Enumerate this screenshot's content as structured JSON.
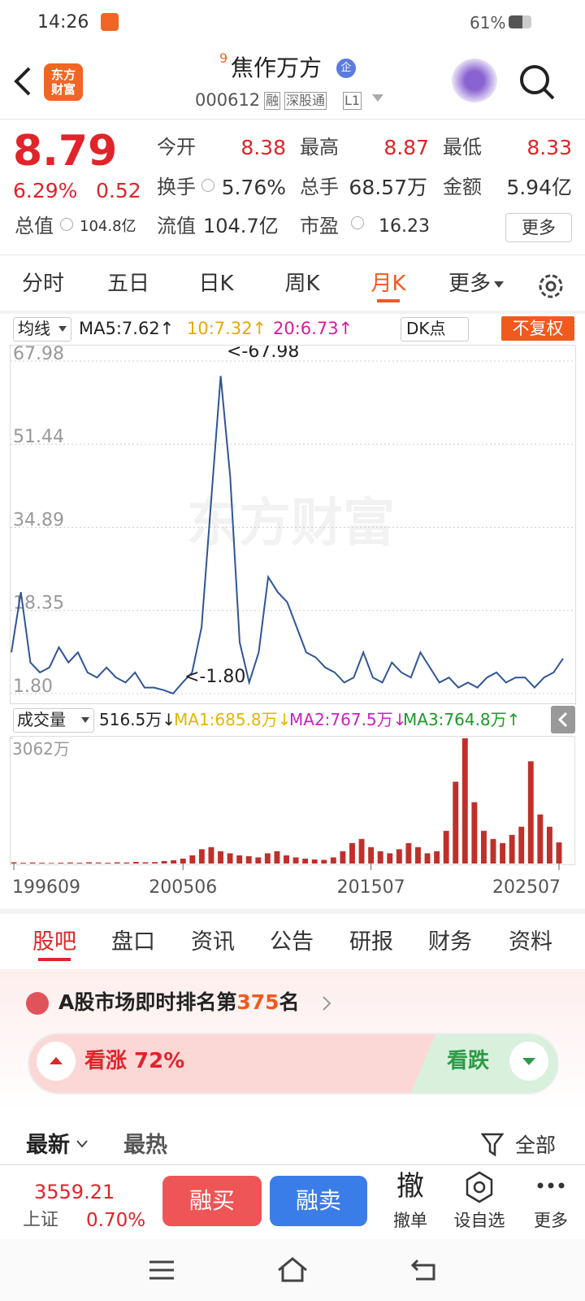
{
  "status_bar": {
    "time": "14:26",
    "battery": "61%"
  },
  "header": {
    "logo": [
      "东方",
      "财富"
    ],
    "superscript": "9",
    "name": "焦作万方",
    "badge": "企",
    "code": "000612",
    "tags": [
      "融",
      "深股通",
      "L1"
    ]
  },
  "quote": {
    "price": "8.79",
    "change_pct": "6.29%",
    "change": "0.52",
    "fields": [
      {
        "label": "今开",
        "value": "8.38"
      },
      {
        "label": "最高",
        "value": "8.87"
      },
      {
        "label": "最低",
        "value": "8.33"
      },
      {
        "label": "换手",
        "value": "5.76%"
      },
      {
        "label": "总手",
        "value": "68.57万"
      },
      {
        "label": "金额",
        "value": "5.94亿"
      },
      {
        "label": "总值",
        "value": "104.8亿"
      },
      {
        "label": "流值",
        "value": "104.7亿"
      },
      {
        "label": "市盈",
        "value": "16.23"
      }
    ],
    "more": "更多"
  },
  "period_tabs": {
    "items": [
      "分时",
      "五日",
      "日K",
      "周K",
      "月K",
      "更多"
    ],
    "active": 4
  },
  "indicator_bar": {
    "selector": "均线",
    "ma5": "MA5:7.62↑",
    "ma10": {
      "text": "10:7.32↑",
      "color": "#e8a800"
    },
    "ma20": {
      "text": "20:6.73↑",
      "color": "#d81b9b"
    },
    "dk": "DK点",
    "adjust": "不复权"
  },
  "watermark": "东方财富",
  "chart_data": [
    {
      "type": "line",
      "color": "#2f5596",
      "ylim": [
        1.8,
        67.98
      ],
      "yticks": [
        {
          "value": 1.8,
          "label": "1.80"
        },
        18.35,
        34.89,
        51.44,
        67.98
      ],
      "grid": true,
      "annotations": [
        "<-67.98",
        "<-1.80"
      ],
      "values": [
        10,
        22,
        8,
        6,
        7,
        11,
        8,
        10,
        6,
        5,
        7,
        5,
        4,
        6,
        3,
        3,
        2.5,
        1.8,
        4,
        6,
        15,
        40,
        65,
        45,
        12,
        4,
        10,
        25,
        22,
        20,
        15,
        10,
        9,
        7,
        6,
        4,
        5,
        10,
        5,
        4,
        8,
        6,
        5,
        10,
        7,
        4,
        5,
        3,
        4,
        3,
        5,
        6,
        4,
        5,
        5,
        3,
        5,
        6,
        8.79
      ]
    },
    {
      "type": "bar",
      "color": "#c0302a",
      "ylim": [
        0,
        3062
      ],
      "yticks": [
        {
          "value": 3062,
          "label": "3062万"
        }
      ],
      "grid": false,
      "legend": {
        "title": "成交量",
        "current": "516.5万↓",
        "ma": [
          {
            "text": "MA1:685.8万↓",
            "color": "#e0b800"
          },
          {
            "text": "MA2:767.5万↓",
            "color": "#d020c0"
          },
          {
            "text": "MA3:764.8万↑",
            "color": "#1a9a2a"
          }
        ]
      },
      "categories": [
        "199609",
        null,
        null,
        null,
        null,
        null,
        null,
        null,
        null,
        null,
        null,
        null,
        null,
        null,
        null,
        null,
        null,
        null,
        "200506",
        null,
        null,
        null,
        null,
        null,
        null,
        null,
        null,
        null,
        null,
        null,
        null,
        null,
        null,
        null,
        null,
        null,
        null,
        null,
        "201507",
        null,
        null,
        null,
        null,
        null,
        null,
        null,
        null,
        null,
        null,
        null,
        null,
        null,
        null,
        null,
        null,
        null,
        null,
        null,
        "202507"
      ],
      "values": [
        30,
        20,
        25,
        20,
        15,
        20,
        25,
        20,
        30,
        25,
        20,
        30,
        25,
        40,
        30,
        35,
        60,
        80,
        120,
        200,
        350,
        400,
        300,
        250,
        200,
        180,
        150,
        250,
        300,
        200,
        150,
        120,
        100,
        90,
        150,
        300,
        500,
        600,
        400,
        300,
        250,
        350,
        500,
        400,
        250,
        300,
        800,
        2000,
        3062,
        1500,
        800,
        600,
        500,
        700,
        900,
        2500,
        1200,
        900,
        516.5
      ]
    }
  ],
  "section_tabs": {
    "items": [
      "股吧",
      "盘口",
      "资讯",
      "公告",
      "研报",
      "财务",
      "资料"
    ],
    "active": 0
  },
  "ranking": {
    "prefix": "A股市场即时排名第",
    "rank": "375",
    "suffix": "名"
  },
  "vote": {
    "up": "看涨 72%",
    "down": "看跌"
  },
  "sort": {
    "items": [
      "最新",
      "最热"
    ],
    "filter": "全部"
  },
  "bottom_bar": {
    "index_value": "3559.21",
    "index_name": "上证",
    "index_change": "0.70%",
    "buy": "融买",
    "sell": "融卖",
    "cancel_icon": "撤",
    "cancel": "撤单",
    "watch": "设自选",
    "more": "更多"
  }
}
